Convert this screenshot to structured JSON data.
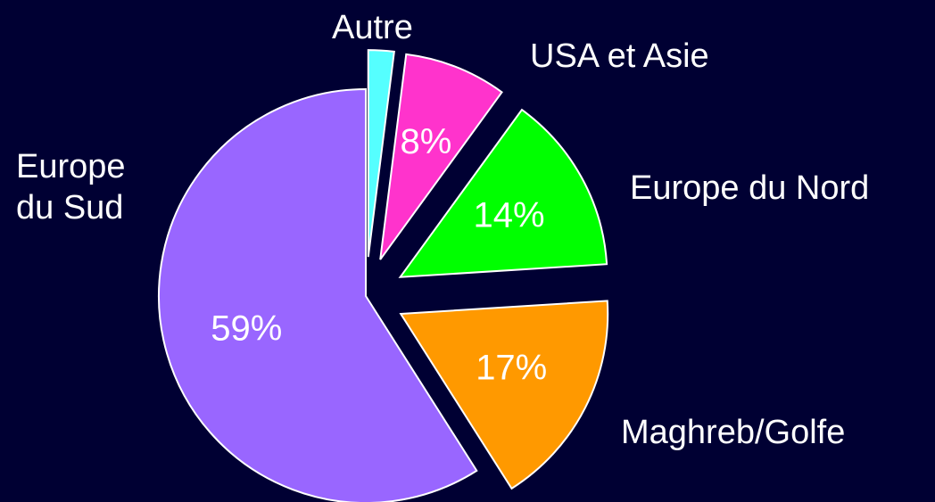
{
  "chart_data": {
    "type": "pie",
    "categories": [
      "Autre",
      "USA et Asie",
      "Europe du Nord",
      "Maghreb/Golfe",
      "Europe du Sud"
    ],
    "values": [
      2,
      8,
      14,
      17,
      59
    ],
    "value_labels": [
      null,
      "8%",
      "14%",
      "17%",
      "59%"
    ],
    "colors": [
      "#55ffff",
      "#ff33cc",
      "#00ff00",
      "#ff9900",
      "#9966ff"
    ],
    "exploded": [
      true,
      true,
      true,
      true,
      false
    ]
  }
}
